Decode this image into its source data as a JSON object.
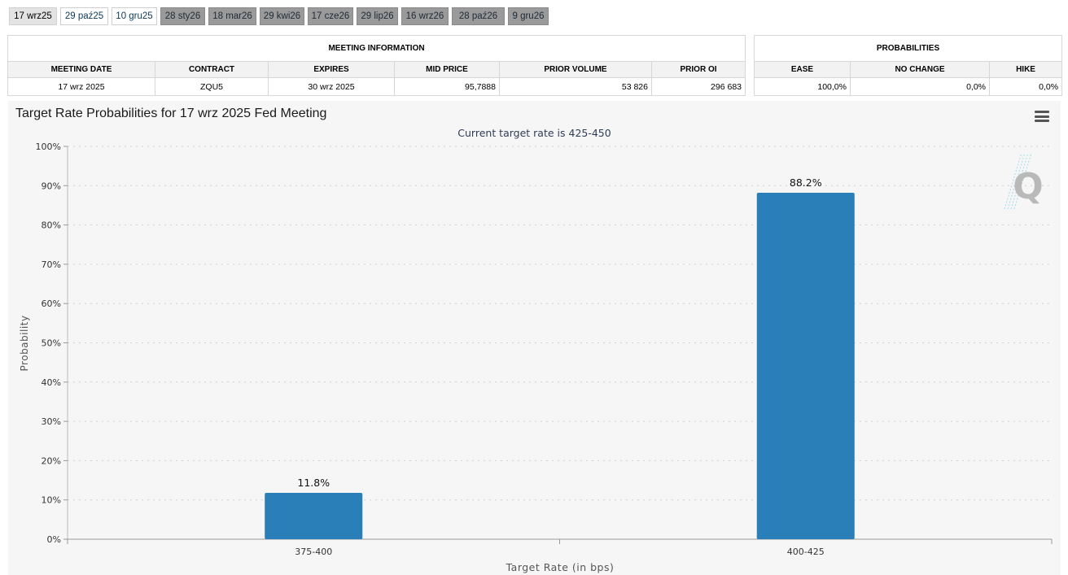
{
  "tabs": [
    {
      "label": "17 wrz25",
      "style": "active"
    },
    {
      "label": "29 paź25",
      "style": "light"
    },
    {
      "label": "10 gru25",
      "style": "light"
    },
    {
      "label": "28 sty26",
      "style": "dark"
    },
    {
      "label": "18 mar26",
      "style": "dark"
    },
    {
      "label": "29 kwi26",
      "style": "dark"
    },
    {
      "label": "17 cze26",
      "style": "dark"
    },
    {
      "label": "29 lip26",
      "style": "dark"
    },
    {
      "label": "16 wrz26",
      "style": "dark"
    },
    {
      "label": "28 paź26",
      "style": "dark"
    },
    {
      "label": "9 gru26",
      "style": "dark"
    }
  ],
  "meeting_info": {
    "title": "MEETING INFORMATION",
    "headers": [
      "MEETING DATE",
      "CONTRACT",
      "EXPIRES",
      "MID PRICE",
      "PRIOR VOLUME",
      "PRIOR OI"
    ],
    "values": [
      "17 wrz 2025",
      "ZQU5",
      "30 wrz 2025",
      "95,7888",
      "53 826",
      "296 683"
    ]
  },
  "probabilities": {
    "title": "PROBABILITIES",
    "headers": [
      "EASE",
      "NO CHANGE",
      "HIKE"
    ],
    "values": [
      "100,0%",
      "0,0%",
      "0,0%"
    ]
  },
  "chart_data": {
    "type": "bar",
    "title": "Target Rate Probabilities for 17 wrz 2025 Fed Meeting",
    "subtitle": "Current target rate is 425-450",
    "xlabel": "Target Rate (in bps)",
    "ylabel": "Probability",
    "categories": [
      "375-400",
      "400-425"
    ],
    "values": [
      11.8,
      88.2
    ],
    "data_labels": [
      "11.8%",
      "88.2%"
    ],
    "ylim": [
      0,
      100
    ],
    "yticks": [
      0,
      10,
      20,
      30,
      40,
      50,
      60,
      70,
      80,
      90,
      100
    ],
    "ytick_suffix": "%",
    "grid": true,
    "bar_color": "#2a7fb8"
  },
  "icons": {
    "menu": "hamburger-menu-icon",
    "logo": "q-logo-icon"
  }
}
